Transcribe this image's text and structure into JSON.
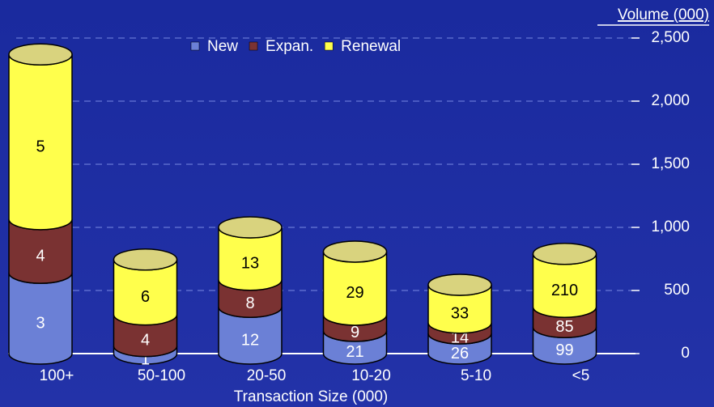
{
  "chart_data": {
    "type": "stacked-cylinder",
    "y_axis_title": "Volume (000)",
    "x_axis_title": "Transaction Size (000)",
    "categories": [
      "100+",
      "50-100",
      "20-50",
      "10-20",
      "5-10",
      "<5"
    ],
    "series": [
      {
        "name": "New",
        "color": "#6b80d6",
        "values": [
          640,
          60,
          370,
          180,
          160,
          210
        ],
        "counts": [
          3,
          1,
          12,
          21,
          26,
          99
        ]
      },
      {
        "name": "Expan.",
        "color": "#7a3232",
        "values": [
          425,
          250,
          215,
          128,
          85,
          160
        ],
        "counts": [
          4,
          4,
          8,
          9,
          14,
          85
        ]
      },
      {
        "name": "Renewal",
        "color": "#ffff4c",
        "values": [
          1305,
          435,
          415,
          500,
          300,
          420
        ],
        "counts": [
          5,
          6,
          13,
          29,
          33,
          210
        ]
      }
    ],
    "ylim": [
      0,
      2500
    ],
    "yticks": [
      0,
      {
        "value": 500,
        "label": "500"
      },
      {
        "value": 1000,
        "label": "1,000"
      },
      {
        "value": 1500,
        "label": "1,500"
      },
      {
        "value": 2000,
        "label": "2,000"
      },
      {
        "value": 2500,
        "label": "2,500"
      }
    ],
    "grid": true
  }
}
